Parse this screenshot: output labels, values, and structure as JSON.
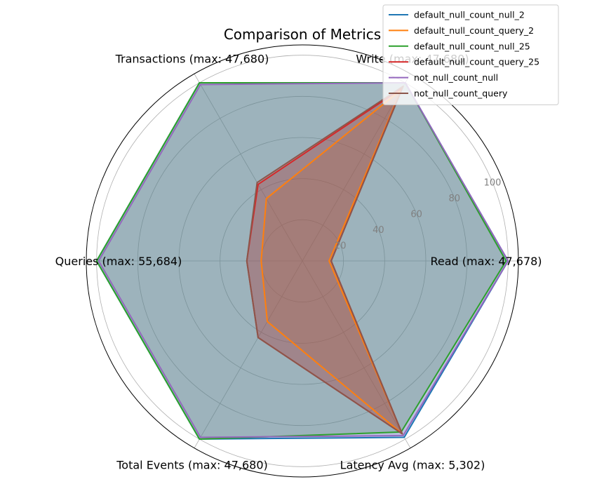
{
  "chart_data": {
    "type": "radar",
    "title": "Comparison of Metrics",
    "axes": [
      "Read (max: 47,678)",
      "Write (max: 47,680)",
      "Transactions (max: 47,680)",
      "Queries (max: 55,684)",
      "Total Events (max: 47,680)",
      "Latency Avg (max: 5,302)"
    ],
    "rlim": [
      0,
      105
    ],
    "rticks": [
      20,
      40,
      60,
      80,
      100
    ],
    "grid": true,
    "legend_position": "top-right",
    "series": [
      {
        "name": "default_null_count_null_2",
        "color": "#1f77b4",
        "values": [
          100,
          100,
          100,
          100,
          100,
          99
        ]
      },
      {
        "name": "default_null_count_query_2",
        "color": "#ff7f0e",
        "values": [
          13,
          96,
          35,
          20,
          34,
          97
        ]
      },
      {
        "name": "default_null_count_null_25",
        "color": "#2ca02c",
        "values": [
          99,
          100,
          100,
          100,
          100,
          96
        ]
      },
      {
        "name": "default_null_count_query_25",
        "color": "#d62728",
        "values": [
          14,
          97,
          43,
          27,
          43,
          97
        ]
      },
      {
        "name": "not_null_count_null",
        "color": "#9467bd",
        "values": [
          100,
          100,
          99,
          99,
          99,
          98
        ]
      },
      {
        "name": "not_null_count_query",
        "color": "#8c564b",
        "values": [
          14,
          98,
          44,
          27,
          43,
          97
        ]
      }
    ]
  }
}
